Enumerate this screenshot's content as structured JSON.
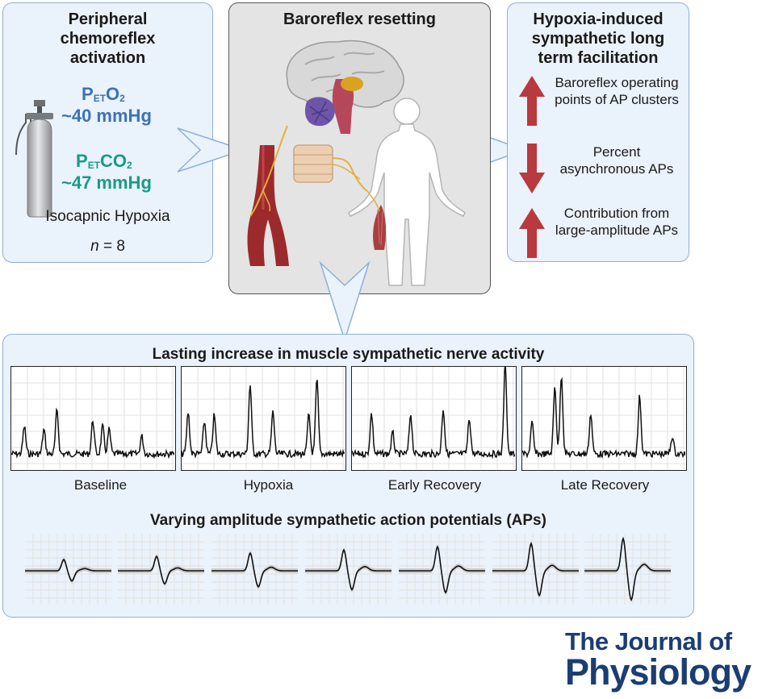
{
  "left_panel": {
    "title": "Peripheral chemoreflex activation",
    "o2_label_p": "P",
    "o2_label_sub": "ET",
    "o2_label_rest": "O",
    "o2_label_sub2": "2",
    "o2_value": "~40 mmHg",
    "co2_label_p": "P",
    "co2_label_sub": "ET",
    "co2_label_rest": "CO",
    "co2_label_sub2": "2",
    "co2_value": "~47 mmHg",
    "condition": "Isocapnic Hypoxia",
    "n_label": "n",
    "n_value": "= 8"
  },
  "center_panel": {
    "title": "Baroreflex resetting"
  },
  "right_panel": {
    "title": "Hypoxia-induced sympathetic long term facilitation",
    "items": [
      {
        "direction": "up",
        "text": "Baroreflex operating points of AP clusters"
      },
      {
        "direction": "down",
        "text": "Percent asynchronous APs"
      },
      {
        "direction": "up",
        "text": "Contribution from large-amplitude APs"
      }
    ]
  },
  "bottom_panel": {
    "title": "Lasting increase in muscle sympathetic nerve activity",
    "traces": [
      {
        "label": "Baseline"
      },
      {
        "label": "Hypoxia"
      },
      {
        "label": "Early Recovery"
      },
      {
        "label": "Late Recovery"
      }
    ],
    "ap_title": "Varying amplitude sympathetic action potentials (APs)",
    "ap_amplitudes": [
      0.35,
      0.45,
      0.55,
      0.65,
      0.75,
      0.85,
      1.0
    ]
  },
  "journal": {
    "line1": "The Journal of",
    "line2": "Physiology"
  },
  "colors": {
    "panel_border": "#8fb0d6",
    "panel_fill": "#eaf2fb",
    "arrow_red": "#b83a3e",
    "o2_blue": "#3d72b4",
    "co2_teal": "#1a9a86",
    "journal_navy": "#1b3d73"
  }
}
